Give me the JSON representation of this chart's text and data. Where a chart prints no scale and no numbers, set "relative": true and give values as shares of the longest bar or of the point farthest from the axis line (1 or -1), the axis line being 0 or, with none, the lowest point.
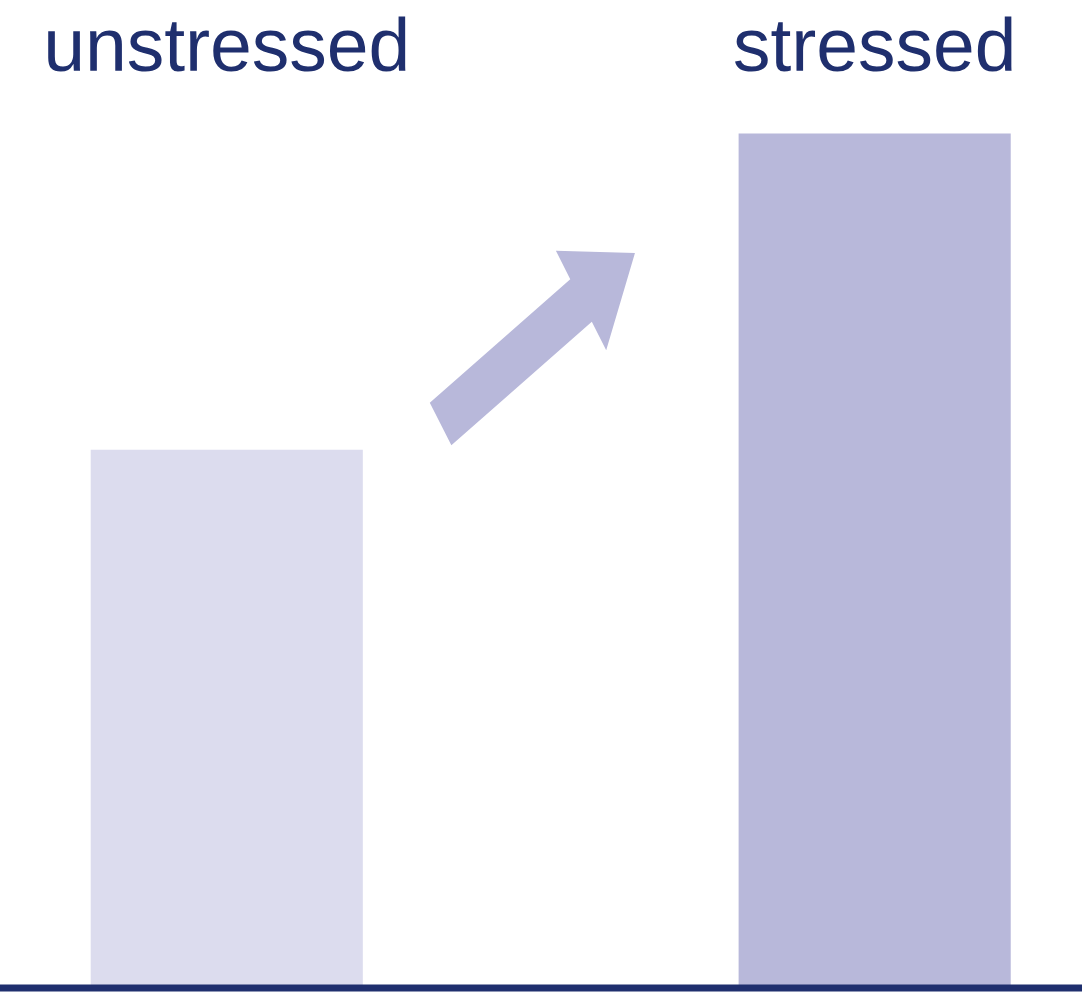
{
  "chart_data": {
    "type": "bar",
    "relative": true,
    "categories": [
      "unstressed",
      "stressed"
    ],
    "values": [
      0.63,
      1
    ],
    "colors": [
      "#dcdcee",
      "#b8b8da"
    ],
    "grid": false,
    "legend": false
  }
}
